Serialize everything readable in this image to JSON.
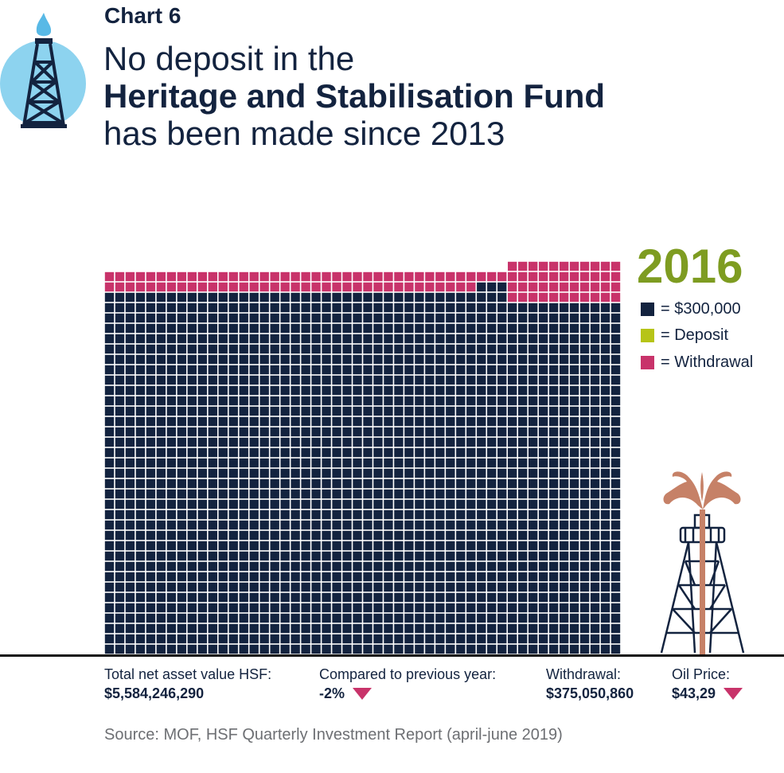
{
  "header": {
    "chart_label": "Chart 6",
    "title_line1": "No deposit in the",
    "title_line2": "Heritage and Stabilisation Fund",
    "title_line3": "has been made since 2013"
  },
  "chart_data": {
    "type": "waffle",
    "year": "2016",
    "legend": [
      {
        "label": "= $300,000",
        "color": "#13233f"
      },
      {
        "label": "= Deposit",
        "color": "#b6c417"
      },
      {
        "label": "= Withdrawal",
        "color": "#c8336a"
      }
    ],
    "columns": 50,
    "unit_value": 300000,
    "column_heights": {
      "group_a": {
        "columns": 36,
        "total_squares": 37,
        "withdrawal_squares": 2
      },
      "group_b": {
        "columns": 3,
        "total_squares": 37,
        "withdrawal_squares": 1
      },
      "group_c": {
        "columns": 11,
        "total_squares": 38,
        "withdrawal_squares": 4
      }
    },
    "colors": {
      "asset": "#13233f",
      "deposit": "#b6c417",
      "withdrawal": "#c8336a"
    }
  },
  "stats": [
    {
      "label": "Total net asset value HSF:",
      "value": "$5,584,246,290",
      "arrow": false
    },
    {
      "label": "Compared to previous year:",
      "value": "-2%",
      "arrow": true
    },
    {
      "label": "Withdrawal:",
      "value": "$375,050,860",
      "arrow": false
    },
    {
      "label": "Oil Price:",
      "value": "$43,29",
      "arrow": true
    }
  ],
  "source": "Source: MOF, HSF Quarterly Investment Report (april-june 2019)",
  "icons": {
    "top_left": "oil-rig-flame-icon",
    "bottom_right": "oil-gusher-icon"
  }
}
